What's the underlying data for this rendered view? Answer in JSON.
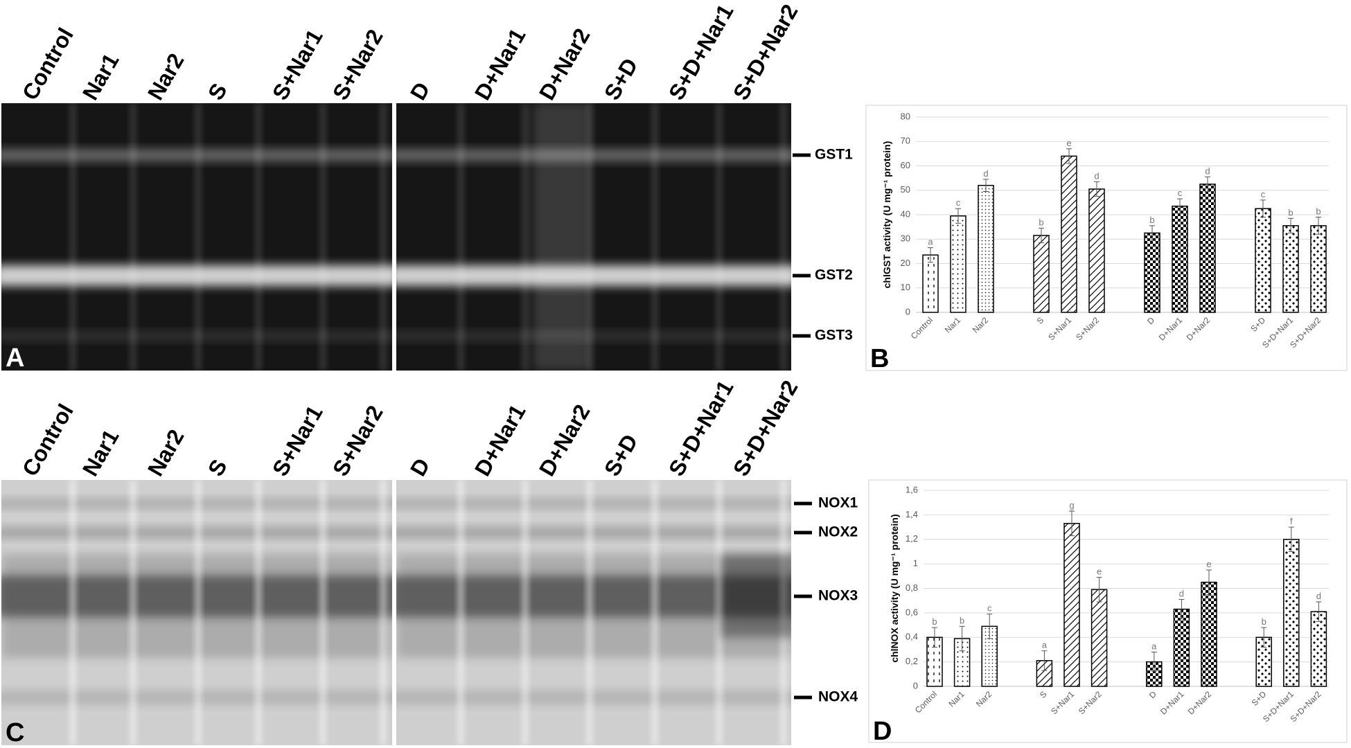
{
  "gels": [
    {
      "panel": "A",
      "lanes": [
        "Control",
        "Nar1",
        "Nar2",
        "S",
        "S+Nar1",
        "S+Nar2",
        "D",
        "D+Nar1",
        "D+Nar2",
        "S+D",
        "S+D+Nar1",
        "S+D+Nar2"
      ],
      "bands": [
        "GST1",
        "GST2",
        "GST3"
      ]
    },
    {
      "panel": "C",
      "lanes": [
        "Control",
        "Nar1",
        "Nar2",
        "S",
        "S+Nar1",
        "S+Nar2",
        "D",
        "D+Nar1",
        "D+Nar2",
        "S+D",
        "S+D+Nar1",
        "S+D+Nar2"
      ],
      "bands": [
        "NOX1",
        "NOX2",
        "NOX3",
        "NOX4"
      ]
    }
  ],
  "chart_data": [
    {
      "type": "bar",
      "panel": "B",
      "ylabel": "chlGST activity (U mg⁻¹ protein)",
      "categories": [
        "Control",
        "Nar1",
        "Nar2",
        null,
        "S",
        "S+Nar1",
        "S+Nar2",
        null,
        "D",
        "D+Nar1",
        "D+Nar2",
        null,
        "S+D",
        "S+D+Nar1",
        "S+D+Nar2"
      ],
      "values": [
        23.5,
        39.5,
        52,
        null,
        31.5,
        64,
        50.5,
        null,
        32.5,
        43.5,
        52.5,
        null,
        42.5,
        35.5,
        35.5
      ],
      "errors": [
        3,
        3,
        2.5,
        null,
        3,
        3,
        3,
        null,
        3,
        3,
        3,
        null,
        3.5,
        3,
        3.5
      ],
      "letters": [
        "a",
        "c",
        "d",
        null,
        "b",
        "e",
        "d",
        null,
        "b",
        "c",
        "d",
        null,
        "c",
        "b",
        "b"
      ],
      "patterns": [
        "dashes",
        "dots",
        "finedots",
        null,
        "diag",
        "diag",
        "diag",
        null,
        "checker",
        "checker",
        "checker",
        null,
        "confetti",
        "confetti",
        "confetti"
      ],
      "color": "#000000",
      "ylim": [
        0,
        80
      ],
      "yticks": [
        0,
        10,
        20,
        30,
        40,
        50,
        60,
        70,
        80
      ],
      "grid": true
    },
    {
      "type": "bar",
      "panel": "D",
      "ylabel": "chlNOX activity (U mg⁻¹ protein)",
      "categories": [
        "Control",
        "Nar1",
        "Nar2",
        null,
        "S",
        "S+Nar1",
        "S+Nar2",
        null,
        "D",
        "D+Nar1",
        "D+Nar2",
        null,
        "S+D",
        "S+D+Nar1",
        "S+D+Nar2"
      ],
      "values": [
        0.4,
        0.39,
        0.49,
        null,
        0.21,
        1.33,
        0.79,
        null,
        0.2,
        0.63,
        0.85,
        null,
        0.4,
        1.2,
        0.61
      ],
      "errors": [
        0.08,
        0.1,
        0.1,
        null,
        0.08,
        0.1,
        0.1,
        null,
        0.08,
        0.08,
        0.1,
        null,
        0.08,
        0.1,
        0.08
      ],
      "letters": [
        "b",
        "b",
        "c",
        null,
        "a",
        "g",
        "e",
        null,
        "a",
        "d",
        "e",
        null,
        "b",
        "f",
        "d"
      ],
      "patterns": [
        "dashes",
        "dots",
        "finedots",
        null,
        "diag",
        "diag",
        "diag",
        null,
        "checker",
        "checker",
        "checker",
        null,
        "confetti",
        "confetti",
        "confetti"
      ],
      "color": "#000000",
      "ylim": [
        0,
        1.6
      ],
      "yticks": [
        0,
        {
          "value": 0.2,
          "label": "0,2"
        },
        {
          "value": 0.4,
          "label": "0,4"
        },
        {
          "value": 0.6,
          "label": "0,6"
        },
        {
          "value": 0.8,
          "label": "0,8"
        },
        1,
        {
          "value": 1.2,
          "label": "1,2"
        },
        {
          "value": 1.4,
          "label": "1,4"
        },
        {
          "value": 1.6,
          "label": "1,6"
        }
      ],
      "grid": true
    }
  ]
}
